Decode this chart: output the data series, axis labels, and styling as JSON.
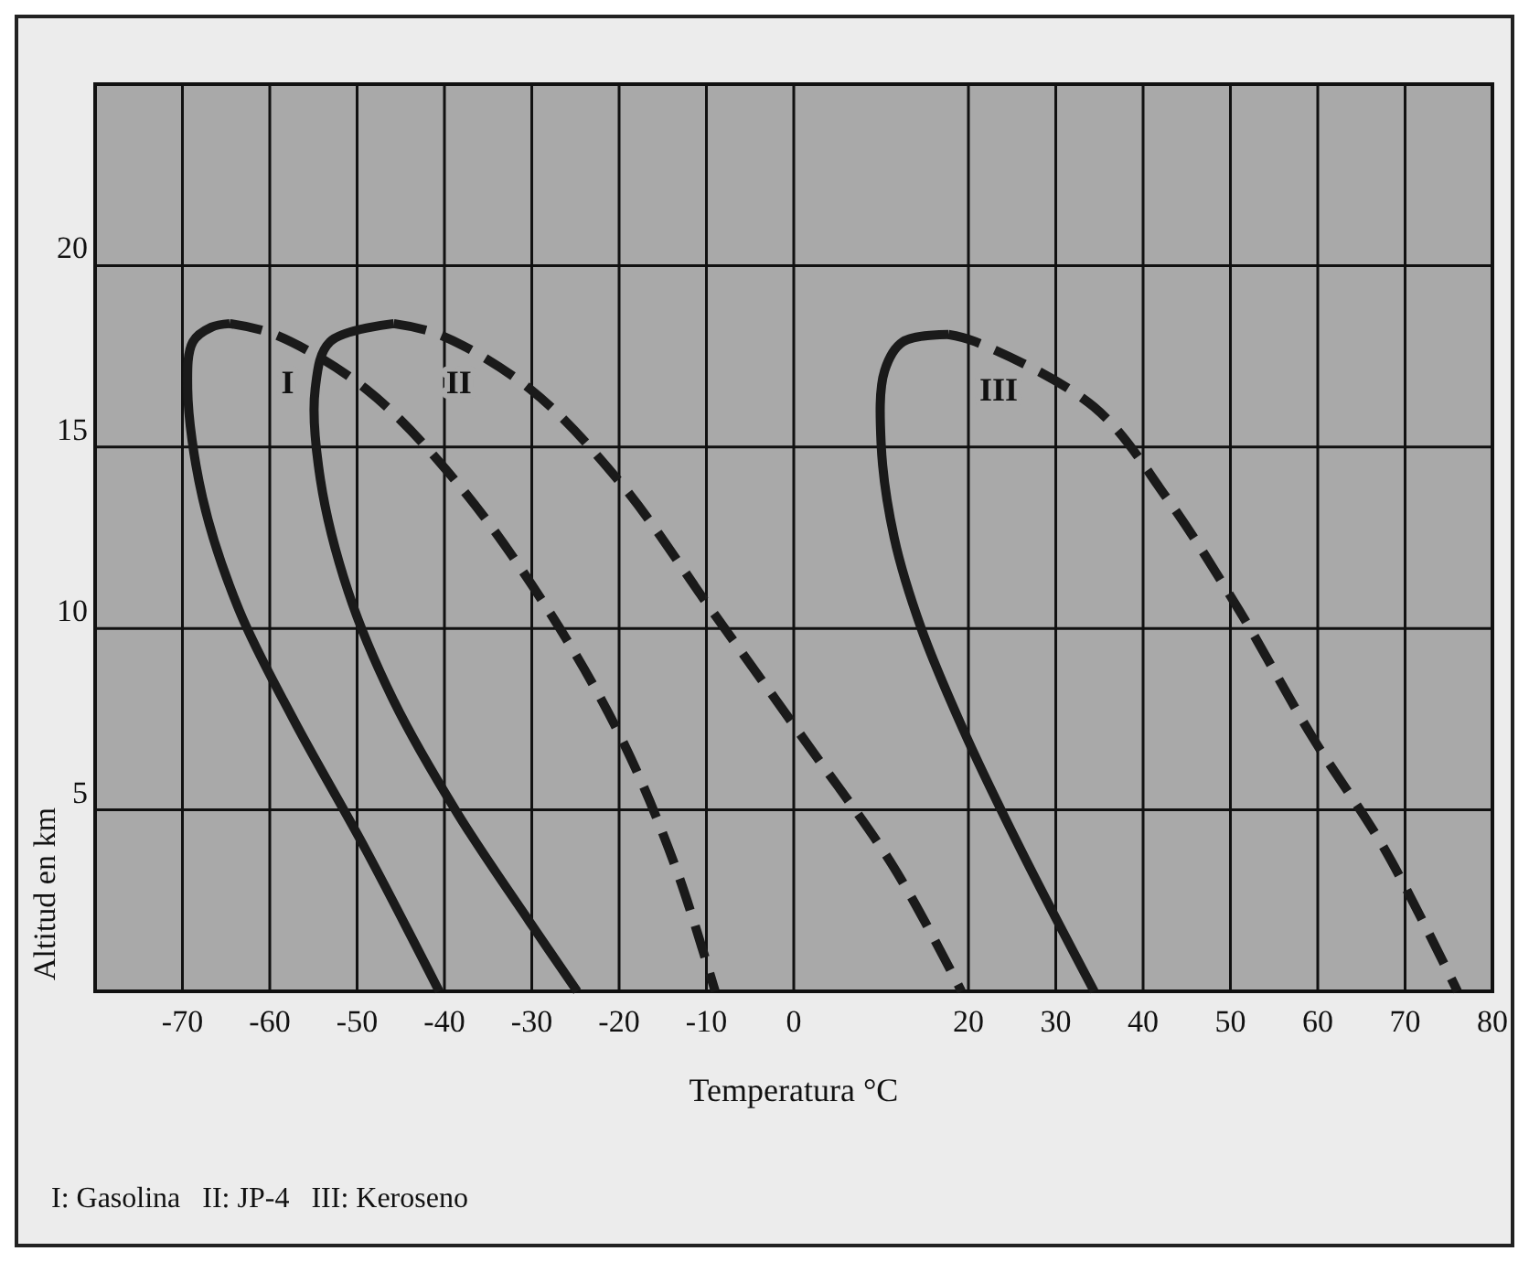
{
  "chart_data": {
    "type": "line",
    "xlabel": "Temperatura °C",
    "ylabel": "Altitud en km",
    "xlim": [
      -80,
      80
    ],
    "xticks": [
      -70,
      -60,
      -50,
      -40,
      -30,
      -20,
      -10,
      0,
      20,
      30,
      40,
      50,
      60,
      70,
      80
    ],
    "ylim": [
      0,
      25
    ],
    "yticks": [
      5,
      10,
      15,
      20
    ],
    "grid": true,
    "marker": "none",
    "series": [
      {
        "color": "#1a1a1a",
        "line_style": "solid",
        "x": [
          -64.6,
          -66.7,
          -68.8,
          -69.4,
          -67.7,
          -63.5,
          -57.3,
          -49,
          -40.6
        ],
        "values": [
          18.4,
          18.3,
          17.9,
          16.6,
          13.6,
          10.5,
          7.5,
          3.9,
          0
        ]
      },
      {
        "color": "#1a1a1a",
        "line_style": "dashed",
        "x": [
          -64.6,
          -59.4,
          -49,
          -38.5,
          -28.1,
          -19.8,
          -13.5,
          -9
        ],
        "values": [
          18.4,
          18.1,
          16.6,
          14,
          10.5,
          7,
          3.4,
          0
        ]
      },
      {
        "color": "#1a1a1a",
        "line_style": "solid",
        "x": [
          -45.8,
          -53.1,
          -54.8,
          -54.2,
          -51,
          -45.8,
          -38.5,
          -30.2,
          -24.8
        ],
        "values": [
          18.4,
          17.9,
          16.6,
          14.1,
          11,
          8,
          4.9,
          1.9,
          0
        ]
      },
      {
        "color": "#1a1a1a",
        "line_style": "dashed",
        "x": [
          -45.8,
          -40.6,
          -30.2,
          -19.8,
          -9.4,
          1,
          11.5,
          19.2
        ],
        "values": [
          18.4,
          18.1,
          16.6,
          14,
          10.5,
          7,
          3.4,
          0
        ]
      },
      {
        "color": "#1a1a1a",
        "line_style": "solid",
        "x": [
          17.7,
          12.5,
          10.4,
          10,
          11.5,
          14.6,
          19.8,
          26,
          34.4
        ],
        "values": [
          18.1,
          17.9,
          17.1,
          15.1,
          12.5,
          10,
          7,
          3.9,
          0
        ]
      },
      {
        "color": "#1a1a1a",
        "line_style": "dashed",
        "x": [
          17.7,
          20.8,
          34.4,
          42.7,
          51,
          59.4,
          67.7,
          76
        ],
        "values": [
          18.1,
          17.9,
          16.1,
          13.6,
          10.5,
          7,
          3.9,
          0
        ]
      }
    ],
    "annotations": [
      "I",
      "II",
      "III",
      "I: Gasolina   II: JP-4   III: Keroseno"
    ]
  }
}
